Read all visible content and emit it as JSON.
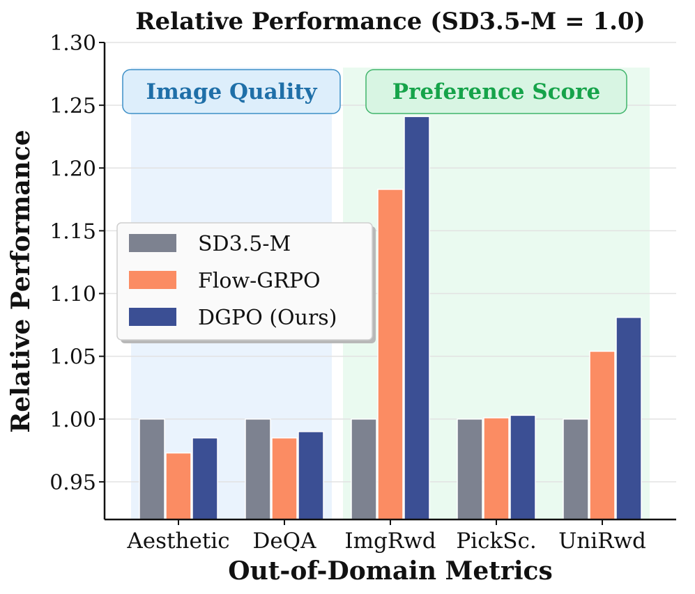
{
  "chart_data": {
    "type": "bar",
    "title": "Relative Performance (SD3.5-M = 1.0)",
    "xlabel": "Out-of-Domain Metrics",
    "ylabel": "Relative Performance",
    "ylim": [
      0.92,
      1.3
    ],
    "yticks": [
      0.95,
      1.0,
      1.05,
      1.1,
      1.15,
      1.2,
      1.25,
      1.3
    ],
    "ytick_labels": [
      "0.95",
      "1.00",
      "1.05",
      "1.10",
      "1.15",
      "1.20",
      "1.25",
      "1.30"
    ],
    "grid": true,
    "legend_position": "center-left",
    "categories": [
      "Aesthetic",
      "DeQA",
      "ImgRwd",
      "PickSc.",
      "UniRwd"
    ],
    "series": [
      {
        "name": "SD3.5-M",
        "color": "#7d8290",
        "values": [
          1.0,
          1.0,
          1.0,
          1.0,
          1.0
        ]
      },
      {
        "name": "Flow-GRPO",
        "color": "#fb8c63",
        "values": [
          0.973,
          0.985,
          1.183,
          1.001,
          1.054
        ]
      },
      {
        "name": "DGPO (Ours)",
        "color": "#3b4f94",
        "values": [
          0.985,
          0.99,
          1.241,
          1.003,
          1.081
        ]
      }
    ],
    "groups": [
      {
        "label": "Image Quality",
        "categories": [
          "Aesthetic",
          "DeQA"
        ],
        "text_color": "#1f6fa8",
        "fill_color": "#eaf3fd",
        "box_fill": "#ddeefb",
        "box_stroke": "#3d8fc7"
      },
      {
        "label": "Preference Score",
        "categories": [
          "ImgRwd",
          "PickSc.",
          "UniRwd"
        ],
        "text_color": "#16a34a",
        "fill_color": "#eafaf0",
        "box_fill": "#d8f5e3",
        "box_stroke": "#3fb46a"
      }
    ]
  }
}
